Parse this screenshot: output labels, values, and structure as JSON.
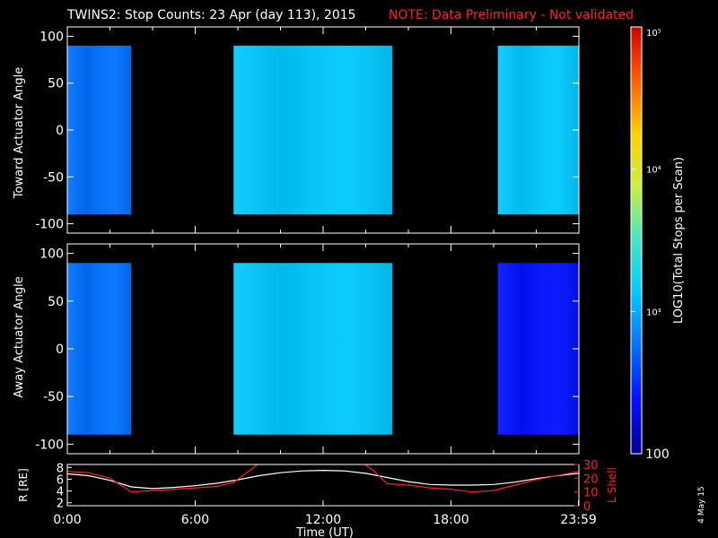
{
  "title": {
    "main": "TWINS2: Stop Counts: 23 Apr (day 113), 2015",
    "note": "NOTE: Data Preliminary - Not validated"
  },
  "footer": {
    "date_stamp": "4 May 15"
  },
  "colors": {
    "background": "#000000",
    "frame": "#ffffff",
    "note": "#ff2020",
    "r_line": "#ffffff",
    "lshell_line": "#ff2020",
    "colormap": [
      "#000090",
      "#0010ff",
      "#0070ff",
      "#00c8ff",
      "#40e8c8",
      "#c8f040",
      "#ffd000",
      "#ff6000",
      "#d00000"
    ]
  },
  "chart_data": [
    {
      "id": "toward",
      "type": "heatmap",
      "ylabel": "Toward Actuator Angle",
      "ylim": [
        -110,
        110
      ],
      "yticks": [
        100,
        50,
        0,
        -50,
        -100
      ],
      "xlim": [
        0,
        24
      ],
      "data_extent_y": [
        -90,
        90
      ],
      "segments": [
        {
          "start": 0.0,
          "end": 3.0,
          "log10_counts": 2.85
        },
        {
          "start": 7.8,
          "end": 15.25,
          "log10_counts": 3.15
        },
        {
          "start": 20.2,
          "end": 24.0,
          "log10_counts": 2.95
        }
      ]
    },
    {
      "id": "away",
      "type": "heatmap",
      "ylabel": "Away Actuator Angle",
      "ylim": [
        -110,
        110
      ],
      "yticks": [
        100,
        50,
        0,
        -50,
        -100
      ],
      "xlim": [
        0,
        24
      ],
      "data_extent_y": [
        -90,
        90
      ],
      "segments": [
        {
          "start": 0.0,
          "end": 3.0,
          "log10_counts": 2.75
        },
        {
          "start": 7.8,
          "end": 15.25,
          "log10_counts": 3.1
        },
        {
          "start": 20.2,
          "end": 24.0,
          "log10_counts": 2.55
        }
      ]
    },
    {
      "id": "ephemeris",
      "type": "line",
      "ylabel": "R [RE]",
      "y2label": "L Shell",
      "xlabel": "Time (UT)",
      "xlim": [
        0,
        24
      ],
      "xticks": [
        0,
        6,
        12,
        18,
        23.983
      ],
      "xticklabels": [
        "0:00",
        "6:00",
        "12:00",
        "18:00",
        "23:59"
      ],
      "ylim": [
        1.5,
        8.5
      ],
      "yticks": [
        8,
        6,
        4,
        2
      ],
      "y2lim": [
        0,
        30
      ],
      "y2ticks": [
        30,
        20,
        10,
        0
      ],
      "series": [
        {
          "axis": "left",
          "color": "#ffffff",
          "x": [
            0,
            1,
            2,
            3,
            4,
            5,
            6,
            7,
            8,
            9,
            10,
            11,
            12,
            13,
            14,
            15,
            16,
            17,
            18,
            19,
            20,
            21,
            22,
            23,
            24
          ],
          "y": [
            6.9,
            6.6,
            5.8,
            4.7,
            4.4,
            4.6,
            4.9,
            5.3,
            5.9,
            6.6,
            7.1,
            7.4,
            7.5,
            7.4,
            7.0,
            6.3,
            5.6,
            5.1,
            5.0,
            5.0,
            5.1,
            5.5,
            6.1,
            6.6,
            7.0
          ]
        },
        {
          "axis": "right",
          "color": "#ff2020",
          "x": [
            0,
            1,
            2,
            3,
            4,
            5,
            6,
            7,
            7.8,
            8.5,
            9.0,
            13.9,
            14.4,
            15.0,
            16,
            17,
            18,
            19,
            20,
            21,
            22,
            23,
            24
          ],
          "y": [
            25,
            24,
            20,
            10,
            11,
            12,
            13,
            14,
            17,
            25,
            31,
            31,
            25,
            16,
            15,
            13,
            12,
            10,
            11,
            15,
            19,
            22,
            25
          ]
        }
      ]
    },
    {
      "id": "colorbar",
      "type": "heatmap",
      "ylabel": "LOG10(Total Stops per Scan)",
      "scale": "log",
      "range": [
        100,
        100000
      ],
      "ticks": [
        {
          "value": 100000,
          "label": "10⁵"
        },
        {
          "value": 10000,
          "label": "10⁴"
        },
        {
          "value": 1000,
          "label": "10³"
        },
        {
          "value": 100,
          "label": "100"
        }
      ]
    }
  ]
}
